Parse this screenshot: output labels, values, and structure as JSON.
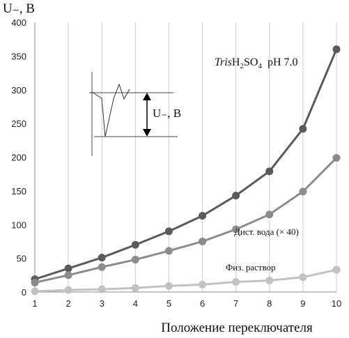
{
  "chart_data": {
    "type": "line",
    "ylabel": "U₋, В",
    "xlabel": "Положение переключателя",
    "x": [
      1,
      2,
      3,
      4,
      5,
      6,
      7,
      8,
      9,
      10
    ],
    "xlim": [
      1,
      10
    ],
    "ylim": [
      0,
      400
    ],
    "yticks": [
      0,
      50,
      100,
      150,
      200,
      250,
      300,
      350,
      400
    ],
    "grid": "vertical",
    "series": [
      {
        "name": "TrisH2SO4  pH 7.0",
        "color": "#5a5a5a",
        "values": [
          19,
          35,
          51,
          70,
          90,
          113,
          143,
          179,
          242,
          360
        ]
      },
      {
        "name": "Дист. вода (× 40)",
        "color": "#8c8c8c",
        "values": [
          14,
          25,
          37,
          48,
          61,
          75,
          93,
          115,
          149,
          199
        ]
      },
      {
        "name": "Физ. раствор",
        "color": "#c2c2c2",
        "values": [
          1,
          3,
          4,
          6,
          9,
          11,
          15,
          17,
          22,
          33
        ]
      }
    ],
    "annotations": {
      "series1_label": {
        "italic": "Tris",
        "main": "H",
        "sub1": "2",
        "mid": "SO",
        "sub2": "4",
        "tail": "  pH 7.0"
      },
      "series2_label": "Дист. вода (× 40)",
      "series3_label": "Физ. раствор",
      "inset_label": "U₋, В"
    }
  }
}
